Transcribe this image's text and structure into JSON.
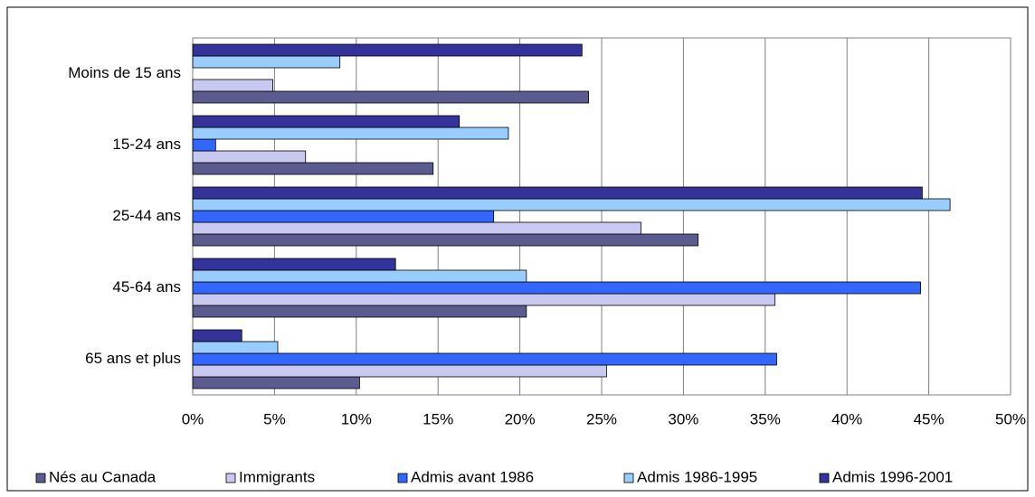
{
  "chart_data": {
    "type": "hbar",
    "categories": [
      "Moins de 15 ans",
      "15-24 ans",
      "25-44 ans",
      "45-64 ans",
      "65 ans et plus"
    ],
    "series": [
      {
        "name": "Nés au Canada",
        "color": "#5b5b8f",
        "values": [
          24.2,
          14.7,
          30.9,
          20.4,
          10.2
        ]
      },
      {
        "name": "Immigrants",
        "color": "#c8c8f0",
        "values": [
          4.9,
          6.9,
          27.4,
          35.6,
          25.3
        ]
      },
      {
        "name": "Admis avant 1986",
        "color": "#3366ff",
        "values": [
          0,
          1.4,
          18.4,
          44.5,
          35.7
        ]
      },
      {
        "name": "Admis 1986-1995",
        "color": "#99ccff",
        "values": [
          9.0,
          19.3,
          46.3,
          20.4,
          5.2
        ]
      },
      {
        "name": "Admis 1996-2001",
        "color": "#333399",
        "values": [
          23.8,
          16.3,
          44.6,
          12.4,
          3.0
        ]
      }
    ],
    "xlim": [
      0,
      50
    ],
    "xticks": [
      {
        "value": 0,
        "label": "0%"
      },
      {
        "value": 5,
        "label": "5%"
      },
      {
        "value": 10,
        "label": "10%"
      },
      {
        "value": 15,
        "label": "15%"
      },
      {
        "value": 20,
        "label": "20%"
      },
      {
        "value": 25,
        "label": "25%"
      },
      {
        "value": 30,
        "label": "30%"
      },
      {
        "value": 35,
        "label": "35%"
      },
      {
        "value": 40,
        "label": "40%"
      },
      {
        "value": 45,
        "label": "45%"
      },
      {
        "value": 50,
        "label": "50%"
      }
    ],
    "grid": true,
    "legend": "bottom"
  }
}
